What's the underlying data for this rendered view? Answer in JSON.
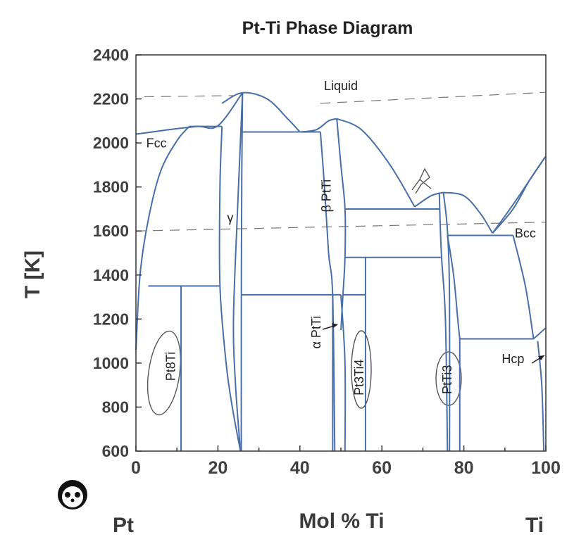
{
  "chart_data": {
    "type": "phase-diagram",
    "title": "Pt-Ti Phase Diagram",
    "xlabel": "Mol % Ti",
    "ylabel": "T [K]",
    "xlim": [
      0,
      100
    ],
    "ylim": [
      600,
      2400
    ],
    "x_ticks": [
      0,
      20,
      40,
      60,
      80,
      100
    ],
    "y_ticks": [
      600,
      800,
      1000,
      1200,
      1400,
      1600,
      1800,
      2000,
      2200,
      2400
    ],
    "end_labels": {
      "left": "Pt",
      "right": "Ti"
    },
    "line_color": "#4a6fa8",
    "phase_labels": [
      {
        "id": "liquid",
        "text": "Liquid",
        "x": 50,
        "y": 2240
      },
      {
        "id": "fcc",
        "text": "Fcc",
        "x": 5,
        "y": 1980
      },
      {
        "id": "gamma",
        "text": "γ",
        "x": 23,
        "y": 1640
      },
      {
        "id": "beta-ptti",
        "text": "β PtTi",
        "x": 47.5,
        "y": 1760,
        "vertical": true
      },
      {
        "id": "bcc",
        "text": "Bcc",
        "x": 95,
        "y": 1570
      },
      {
        "id": "alpha-ptti",
        "text": "α PtTi",
        "x": 45,
        "y": 1140,
        "vertical": true
      },
      {
        "id": "pt8ti",
        "text": "Pt8Ti",
        "x": 9.5,
        "y": 985,
        "vertical": true
      },
      {
        "id": "pt3ti4",
        "text": "Pt3Ti4",
        "x": 55.5,
        "y": 935,
        "vertical": true
      },
      {
        "id": "ptti3",
        "text": "PtTi3",
        "x": 77,
        "y": 925,
        "vertical": true
      },
      {
        "id": "hcp",
        "text": "Hcp",
        "x": 92,
        "y": 1000
      }
    ],
    "curves": [
      {
        "name": "fcc-liquidus",
        "points": [
          [
            0,
            2040
          ],
          [
            8,
            2060
          ],
          [
            15,
            2075
          ],
          [
            20,
            2078
          ],
          [
            26,
            2228
          ]
        ]
      },
      {
        "name": "fcc-solidus",
        "points": [
          [
            0,
            1060
          ],
          [
            1,
            1400
          ],
          [
            3,
            1650
          ],
          [
            6,
            1870
          ],
          [
            10,
            2010
          ],
          [
            13,
            2075
          ]
        ]
      },
      {
        "name": "gamma-dome-liquidus",
        "points": [
          [
            21,
            2180
          ],
          [
            26,
            2228
          ],
          [
            32,
            2200
          ],
          [
            37,
            2110
          ],
          [
            40,
            2050
          ]
        ]
      },
      {
        "name": "gamma-left-boundary",
        "points": [
          [
            21,
            2075
          ],
          [
            20.5,
            1800
          ],
          [
            20.5,
            1350
          ],
          [
            22,
            1000
          ],
          [
            23.5,
            800
          ],
          [
            25.5,
            600
          ]
        ]
      },
      {
        "name": "gamma-right-boundary",
        "points": [
          [
            26,
            2228
          ],
          [
            25.8,
            1800
          ],
          [
            25.7,
            1200
          ],
          [
            25.7,
            600
          ]
        ]
      },
      {
        "name": "gamma-center-boundary",
        "points": [
          [
            26,
            2228
          ],
          [
            24.8,
            1700
          ],
          [
            23.8,
            1200
          ],
          [
            24.3,
            900
          ],
          [
            25.5,
            600
          ]
        ]
      },
      {
        "name": "ptti-liquidus-left",
        "points": [
          [
            40,
            2050
          ],
          [
            44,
            2060
          ],
          [
            47,
            2100
          ],
          [
            49,
            2110
          ]
        ]
      },
      {
        "name": "ptti-liquidus-right",
        "points": [
          [
            49,
            2110
          ],
          [
            55,
            2060
          ],
          [
            62,
            1900
          ],
          [
            68,
            1710
          ]
        ]
      },
      {
        "name": "beta-ptti-left-boundary",
        "points": [
          [
            45,
            2050
          ],
          [
            46,
            1800
          ],
          [
            47,
            1500
          ],
          [
            48,
            1300
          ],
          [
            48.5,
            600
          ]
        ]
      },
      {
        "name": "beta-ptti-right-boundary",
        "points": [
          [
            49,
            2110
          ],
          [
            50,
            1900
          ],
          [
            51,
            1700
          ],
          [
            51,
            1480
          ],
          [
            50.5,
            1310
          ],
          [
            50,
            1150
          ]
        ]
      },
      {
        "name": "alpha-ptti-right-boundary",
        "points": [
          [
            50,
            1310
          ],
          [
            51,
            1000
          ],
          [
            51,
            600
          ]
        ]
      },
      {
        "name": "ptti3-liquidus-left",
        "points": [
          [
            68,
            1710
          ],
          [
            72,
            1760
          ],
          [
            75,
            1775
          ]
        ]
      },
      {
        "name": "ptti3-liquidus-right",
        "points": [
          [
            75,
            1775
          ],
          [
            80,
            1760
          ],
          [
            84,
            1680
          ],
          [
            87,
            1590
          ]
        ]
      },
      {
        "name": "ptti3-left-boundary",
        "points": [
          [
            74,
            1770
          ],
          [
            74.5,
            1500
          ],
          [
            75.5,
            1200
          ],
          [
            76,
            600
          ]
        ]
      },
      {
        "name": "ptti3-right-boundary",
        "points": [
          [
            75,
            1775
          ],
          [
            76,
            1600
          ],
          [
            76.5,
            1300
          ],
          [
            76.5,
            600
          ]
        ]
      },
      {
        "name": "bcc-liquidus",
        "points": [
          [
            87,
            1590
          ],
          [
            92,
            1720
          ],
          [
            96,
            1830
          ],
          [
            100,
            1940
          ]
        ]
      },
      {
        "name": "bcc-solidus",
        "points": [
          [
            87,
            1590
          ],
          [
            92,
            1700
          ],
          [
            96,
            1830
          ],
          [
            100,
            1940
          ]
        ]
      },
      {
        "name": "bcc-solvus-left",
        "points": [
          [
            76,
            1580
          ],
          [
            77.5,
            1400
          ],
          [
            78.5,
            1200
          ],
          [
            79,
            1110
          ]
        ]
      },
      {
        "name": "bcc-solvus-right",
        "points": [
          [
            92,
            1580
          ],
          [
            95,
            1350
          ],
          [
            97,
            1110
          ]
        ]
      },
      {
        "name": "hcp-boundary",
        "points": [
          [
            97,
            1110
          ],
          [
            100,
            1160
          ]
        ]
      },
      {
        "name": "hcp-right-drop",
        "points": [
          [
            98,
            1100
          ],
          [
            99,
            900
          ],
          [
            99.5,
            600
          ]
        ]
      }
    ],
    "horizontals": [
      {
        "x1": 13,
        "x2": 21,
        "y": 2075
      },
      {
        "x1": 26,
        "x2": 45,
        "y": 2050
      },
      {
        "x1": 3,
        "x2": 20.5,
        "y": 1350
      },
      {
        "x1": 25.7,
        "x2": 50,
        "y": 1310
      },
      {
        "x1": 51,
        "x2": 74,
        "y": 1700
      },
      {
        "x1": 51,
        "x2": 74.5,
        "y": 1480
      },
      {
        "x1": 50.5,
        "x2": 56,
        "y": 1310
      },
      {
        "x1": 76,
        "x2": 92,
        "y": 1580
      },
      {
        "x1": 79,
        "x2": 97,
        "y": 1110
      }
    ],
    "verticals": [
      {
        "x": 11,
        "y1": 600,
        "y2": 1350
      },
      {
        "x": 48,
        "y1": 600,
        "y2": 1310
      },
      {
        "x": 56,
        "y1": 600,
        "y2": 1480
      },
      {
        "x": 79,
        "y1": 600,
        "y2": 1110
      }
    ],
    "annotations": [
      {
        "text": "Liquid",
        "dashed": [
          [
            2,
            2210
          ],
          [
            24,
            2215
          ]
        ]
      },
      {
        "text": "Liquid",
        "dashed": [
          [
            45,
            2180
          ],
          [
            100,
            2230
          ]
        ]
      },
      {
        "text": "",
        "dashed": [
          [
            0,
            1600
          ],
          [
            100,
            1640
          ]
        ]
      }
    ]
  }
}
